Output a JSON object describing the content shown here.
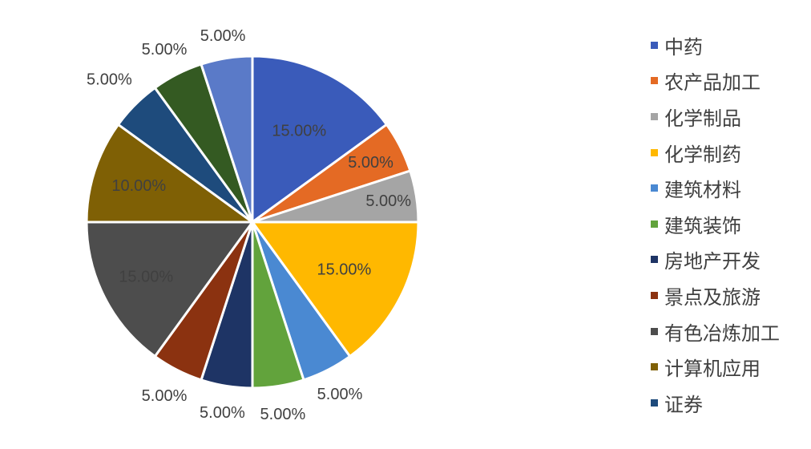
{
  "chart_data": {
    "type": "pie",
    "title": "",
    "legend_position": "right",
    "slices": [
      {
        "label": "中药",
        "value": 15,
        "display": "15.00%",
        "color": "#3A5BBA"
      },
      {
        "label": "农产品加工",
        "value": 5,
        "display": "5.00%",
        "color": "#E46A24"
      },
      {
        "label": "化学制品",
        "value": 5,
        "display": "5.00%",
        "color": "#A5A5A5"
      },
      {
        "label": "化学制药",
        "value": 15,
        "display": "15.00%",
        "color": "#FFB800"
      },
      {
        "label": "建筑材料",
        "value": 5,
        "display": "5.00%",
        "color": "#4A89D2"
      },
      {
        "label": "建筑装饰",
        "value": 5,
        "display": "5.00%",
        "color": "#62A33C"
      },
      {
        "label": "房地产开发",
        "value": 5,
        "display": "5.00%",
        "color": "#1E3465"
      },
      {
        "label": "景点及旅游",
        "value": 5,
        "display": "5.00%",
        "color": "#8B3210"
      },
      {
        "label": "有色冶炼加工",
        "value": 15,
        "display": "15.00%",
        "color": "#4D4D4D"
      },
      {
        "label": "计算机应用",
        "value": 10,
        "display": "10.00%",
        "color": "#7F6005"
      },
      {
        "label": "证券",
        "value": 5,
        "display": "5.00%",
        "color": "#1E4B7C"
      },
      {
        "label": "",
        "value": 5,
        "display": "5.00%",
        "color": "#345A22"
      },
      {
        "label": "",
        "value": 5,
        "display": "5.00%",
        "color": "#5A7AC8"
      }
    ]
  }
}
